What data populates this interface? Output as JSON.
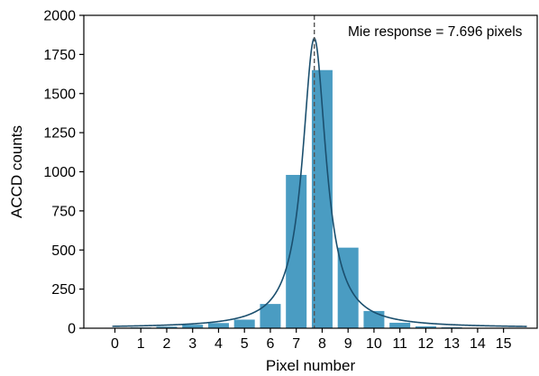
{
  "chart_data": {
    "type": "bar",
    "title": "",
    "xlabel": "Pixel number",
    "ylabel": "ACCD counts",
    "xlim": [
      -1.2,
      16.3
    ],
    "ylim": [
      0,
      2000
    ],
    "x_ticks": [
      0,
      1,
      2,
      3,
      4,
      5,
      6,
      7,
      8,
      9,
      10,
      11,
      12,
      13,
      14,
      15
    ],
    "y_ticks": [
      0,
      250,
      500,
      750,
      1000,
      1250,
      1500,
      1750,
      2000
    ],
    "bars": {
      "x": [
        0,
        1,
        2,
        3,
        4,
        5,
        6,
        7,
        8,
        9,
        10,
        11,
        12,
        13,
        14,
        15
      ],
      "values": [
        3,
        5,
        10,
        22,
        33,
        55,
        155,
        980,
        1650,
        515,
        110,
        35,
        12,
        6,
        3,
        2
      ],
      "color": "#4a9cc2"
    },
    "fit_curve": {
      "type": "lorentzian",
      "center": 7.696,
      "amplitude": 1850,
      "hwhm": 0.55,
      "baseline": 3,
      "color": "#1b4f6e"
    },
    "marker_line": {
      "x": 7.696,
      "style": "dashed",
      "color": "#555555"
    },
    "annotation": {
      "text": "Mie response = 7.696 pixels"
    },
    "grid": false
  }
}
